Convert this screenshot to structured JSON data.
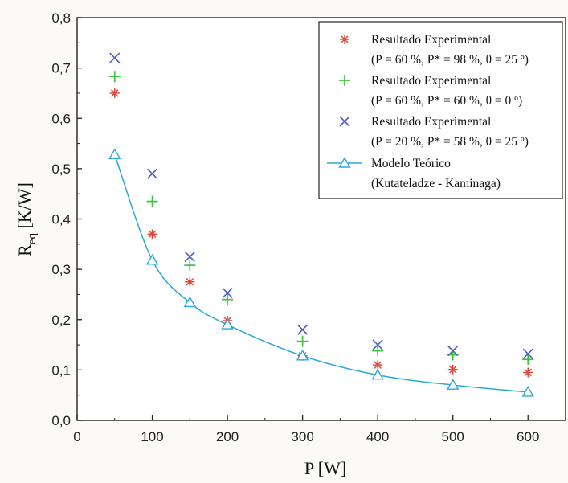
{
  "chart_data": {
    "type": "scatter",
    "xlabel": "P [W]",
    "ylabel_main": "R",
    "ylabel_sub": "eq",
    "ylabel_unit": " [K/W]",
    "xlim": [
      0,
      650
    ],
    "ylim": [
      0,
      0.8
    ],
    "xticks": [
      0,
      100,
      200,
      300,
      400,
      500,
      600
    ],
    "xtick_labels": [
      "0",
      "100",
      "200",
      "300",
      "400",
      "500",
      "600"
    ],
    "yticks": [
      0,
      0.1,
      0.2,
      0.3,
      0.4,
      0.5,
      0.6,
      0.7,
      0.8
    ],
    "ytick_labels": [
      "0,0",
      "0,1",
      "0,2",
      "0,3",
      "0,4",
      "0,5",
      "0,6",
      "0,7",
      "0,8"
    ],
    "grid": false,
    "legend_position": "top-right",
    "series": [
      {
        "name": "Resultado Experimental",
        "condition": "(P = 60 %, P* = 98 %, θ = 25 º)",
        "marker": "asterisk",
        "color": "#e0463a",
        "x": [
          50,
          100,
          150,
          200,
          300,
          400,
          500,
          600
        ],
        "y": [
          0.65,
          0.37,
          0.275,
          0.198,
          0.128,
          0.11,
          0.101,
          0.095
        ]
      },
      {
        "name": "Resultado Experimental",
        "condition": "(P = 60 %, P* = 60 %, θ = 0 º)",
        "marker": "plus",
        "color": "#3ec23e",
        "x": [
          50,
          100,
          150,
          200,
          300,
          400,
          500,
          600
        ],
        "y": [
          0.683,
          0.435,
          0.308,
          0.24,
          0.157,
          0.138,
          0.13,
          0.121
        ]
      },
      {
        "name": "Resultado Experimental",
        "condition": "(P = 20 %, P* = 58 %, θ = 25 º)",
        "marker": "cross",
        "color": "#4a5fc8",
        "x": [
          50,
          100,
          150,
          200,
          300,
          400,
          500,
          600
        ],
        "y": [
          0.72,
          0.49,
          0.325,
          0.253,
          0.18,
          0.15,
          0.138,
          0.132
        ]
      },
      {
        "name": "Modelo Teórico",
        "condition": "(Kutateladze - Kaminaga)",
        "marker": "triangle-line",
        "color": "#2aa9d8",
        "x": [
          50,
          100,
          150,
          200,
          300,
          400,
          500,
          600
        ],
        "y": [
          0.528,
          0.318,
          0.234,
          0.19,
          0.128,
          0.09,
          0.07,
          0.056
        ]
      }
    ]
  }
}
